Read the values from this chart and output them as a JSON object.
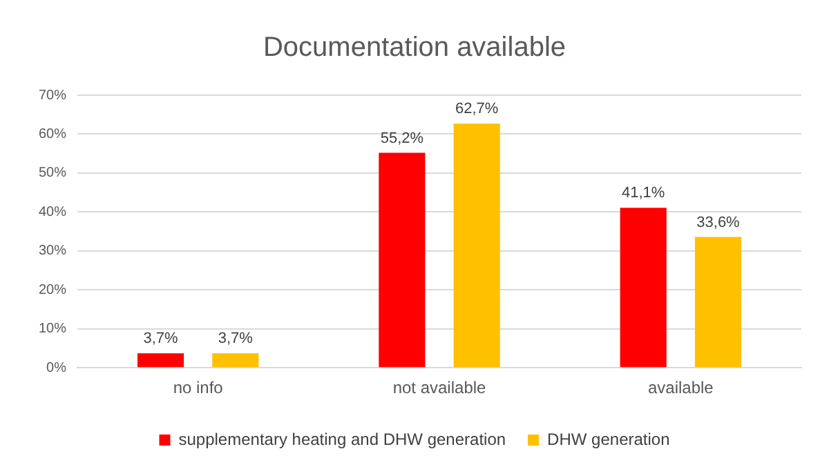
{
  "chart_data": {
    "type": "bar",
    "title": "Documentation available",
    "categories": [
      "no info",
      "not available",
      "available"
    ],
    "series": [
      {
        "name": "supplementary heating and DHW generation",
        "color": "#ff0000",
        "values": [
          3.7,
          55.2,
          41.1
        ],
        "value_labels": [
          "3,7%",
          "55,2%",
          "41,1%"
        ]
      },
      {
        "name": "DHW generation",
        "color": "#ffc000",
        "values": [
          3.7,
          62.7,
          33.6
        ],
        "value_labels": [
          "3,7%",
          "62,7%",
          "33,6%"
        ]
      }
    ],
    "ylim": [
      0,
      70
    ],
    "yticks": [
      {
        "value": 0,
        "label": "0%"
      },
      {
        "value": 10,
        "label": "10%"
      },
      {
        "value": 20,
        "label": "20%"
      },
      {
        "value": 30,
        "label": "30%"
      },
      {
        "value": 40,
        "label": "40%"
      },
      {
        "value": 50,
        "label": "50%"
      },
      {
        "value": 60,
        "label": "60%"
      },
      {
        "value": 70,
        "label": "70%"
      }
    ],
    "grid": "y",
    "legend": "bottom"
  }
}
